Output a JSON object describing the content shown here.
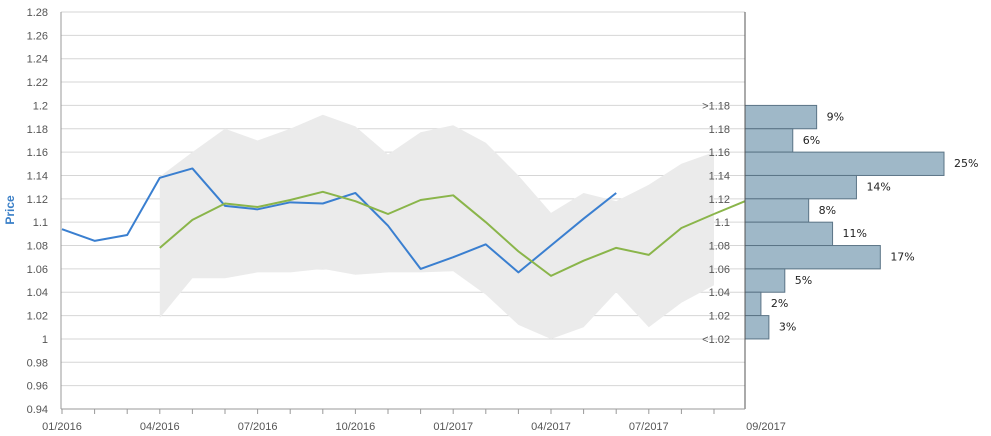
{
  "chart_data": {
    "type": "line",
    "ylabel": "Price",
    "ylim": [
      0.94,
      1.28
    ],
    "y_ticks": [
      "0.94",
      "0.96",
      "0.98",
      "1",
      "1.02",
      "1.04",
      "1.06",
      "1.08",
      "1.1",
      "1.12",
      "1.14",
      "1.16",
      "1.18",
      "1.2",
      "1.22",
      "1.24",
      "1.26",
      "1.28"
    ],
    "x_tick_labels": [
      "01/2016",
      "04/2016",
      "07/2016",
      "10/2016",
      "01/2017",
      "04/2017",
      "07/2017",
      "09/2017"
    ],
    "x_months": [
      "2016-01",
      "2016-02",
      "2016-03",
      "2016-04",
      "2016-05",
      "2016-06",
      "2016-07",
      "2016-08",
      "2016-09",
      "2016-10",
      "2016-11",
      "2016-12",
      "2017-01",
      "2017-02",
      "2017-03",
      "2017-04",
      "2017-05",
      "2017-06",
      "2017-07",
      "2017-08",
      "2017-09"
    ],
    "grid": true,
    "series": [
      {
        "color": "#3a7fd0",
        "values": [
          1.094,
          1.084,
          1.089,
          1.138,
          1.146,
          1.114,
          1.111,
          1.117,
          1.116,
          1.125,
          1.097,
          1.06,
          1.07,
          1.081,
          1.057,
          1.08,
          1.103,
          1.125,
          null,
          null,
          null
        ]
      },
      {
        "color": "#8ab54a",
        "values": [
          null,
          null,
          null,
          1.078,
          1.102,
          1.116,
          1.113,
          1.119,
          1.126,
          1.118,
          1.107,
          1.119,
          1.123,
          1.1,
          1.075,
          1.054,
          1.067,
          1.078,
          1.072,
          1.095,
          1.107
        ]
      }
    ],
    "band": {
      "color": "#ebebeb",
      "upper": [
        null,
        null,
        null,
        1.139,
        1.16,
        1.18,
        1.17,
        1.18,
        1.192,
        1.182,
        1.158,
        1.177,
        1.183,
        1.168,
        1.14,
        1.108,
        1.125,
        1.118,
        1.132,
        1.15,
        1.16
      ],
      "lower": [
        null,
        null,
        null,
        1.018,
        1.052,
        1.052,
        1.057,
        1.057,
        1.06,
        1.055,
        1.057,
        1.057,
        1.058,
        1.038,
        1.012,
        1.0,
        1.01,
        1.04,
        1.01,
        1.031,
        1.046
      ]
    },
    "extension": {
      "color": "#8ab54a",
      "values": [
        1.107,
        1.118
      ]
    },
    "distribution": {
      "bar_color": "#9fb8c8",
      "bar_border": "#5b7486",
      "bins": [
        {
          "label": ">1.18",
          "pct": 9,
          "pct_label": "9%"
        },
        {
          "label": "1.18",
          "pct": 6,
          "pct_label": "6%"
        },
        {
          "label": "1.16",
          "pct": 25,
          "pct_label": "25%"
        },
        {
          "label": "1.14",
          "pct": 14,
          "pct_label": "14%"
        },
        {
          "label": "1.12",
          "pct": 8,
          "pct_label": "8%"
        },
        {
          "label": "1.1",
          "pct": 11,
          "pct_label": "11%"
        },
        {
          "label": "1.08",
          "pct": 17,
          "pct_label": "17%"
        },
        {
          "label": "1.06",
          "pct": 5,
          "pct_label": "5%"
        },
        {
          "label": "1.04",
          "pct": 2,
          "pct_label": "2%"
        },
        {
          "label": "1.02",
          "pct": 3,
          "pct_label": "3%"
        },
        {
          "label": "<1.02",
          "pct": null,
          "pct_label": ""
        }
      ]
    }
  }
}
